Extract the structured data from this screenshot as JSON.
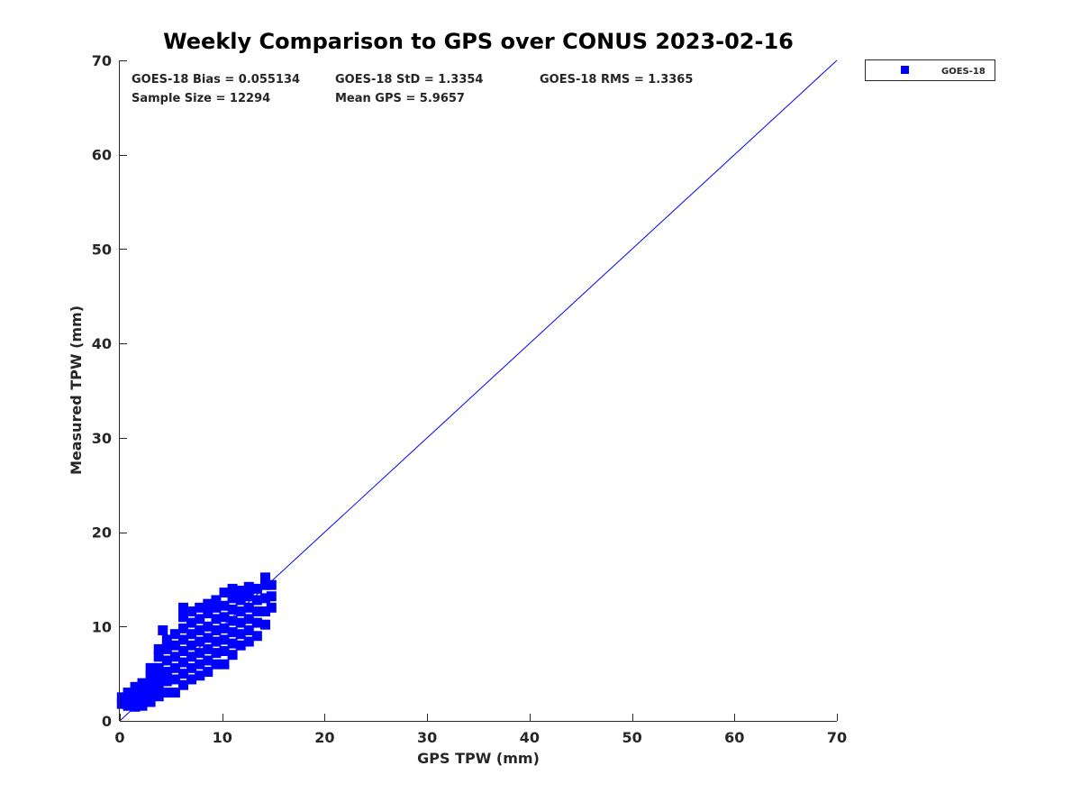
{
  "chart_data": {
    "type": "scatter",
    "title": "Weekly Comparison to GPS over CONUS 2023-02-16",
    "xlabel": "GPS TPW (mm)",
    "ylabel": "Measured TPW (mm)",
    "xlim": [
      0,
      70
    ],
    "ylim": [
      0,
      70
    ],
    "xticks": [
      0,
      10,
      20,
      30,
      40,
      50,
      60,
      70
    ],
    "yticks": [
      0,
      10,
      20,
      30,
      40,
      50,
      60,
      70
    ],
    "grid": false,
    "legend": {
      "position": "outside-top-right",
      "entries": [
        "GOES-18"
      ]
    },
    "stats": [
      "GOES-18 Bias = 0.055134",
      "GOES-18 StD = 1.3354",
      "GOES-18 RMS = 1.3365",
      "Sample Size = 12294",
      "Mean GPS = 5.9657"
    ],
    "reference_line": {
      "name": "1:1 line",
      "x": [
        0,
        70
      ],
      "y": [
        0,
        70
      ],
      "color": "#0000ff"
    },
    "series": [
      {
        "name": "GOES-18",
        "color": "#0000ff",
        "marker": "square",
        "points": [
          [
            0.2,
            1.8
          ],
          [
            0.2,
            2.5
          ],
          [
            0.8,
            1.6
          ],
          [
            0.8,
            2.4
          ],
          [
            0.8,
            3.0
          ],
          [
            1.5,
            1.5
          ],
          [
            1.5,
            2.2
          ],
          [
            1.5,
            3.0
          ],
          [
            1.5,
            3.6
          ],
          [
            2.2,
            1.6
          ],
          [
            2.2,
            2.4
          ],
          [
            2.2,
            3.2
          ],
          [
            2.2,
            4.0
          ],
          [
            3.0,
            2.0
          ],
          [
            3.0,
            3.0
          ],
          [
            3.0,
            3.8
          ],
          [
            3.0,
            4.8
          ],
          [
            3.0,
            5.6
          ],
          [
            3.8,
            2.6
          ],
          [
            3.8,
            3.6
          ],
          [
            3.8,
            4.6
          ],
          [
            3.8,
            5.6
          ],
          [
            3.8,
            6.8
          ],
          [
            3.8,
            7.6
          ],
          [
            4.2,
            9.6
          ],
          [
            4.6,
            3.0
          ],
          [
            4.6,
            4.2
          ],
          [
            4.6,
            5.2
          ],
          [
            4.6,
            6.4
          ],
          [
            4.6,
            7.6
          ],
          [
            4.6,
            8.6
          ],
          [
            5.4,
            3.0
          ],
          [
            5.4,
            4.4
          ],
          [
            5.4,
            5.6
          ],
          [
            5.4,
            6.8
          ],
          [
            5.4,
            8.0
          ],
          [
            5.4,
            9.2
          ],
          [
            6.2,
            3.8
          ],
          [
            6.2,
            5.0
          ],
          [
            6.2,
            6.2
          ],
          [
            6.2,
            7.4
          ],
          [
            6.2,
            8.6
          ],
          [
            6.2,
            9.8
          ],
          [
            6.2,
            11.0
          ],
          [
            6.2,
            12.0
          ],
          [
            7.0,
            4.4
          ],
          [
            7.0,
            5.6
          ],
          [
            7.0,
            6.8
          ],
          [
            7.0,
            8.0
          ],
          [
            7.0,
            9.2
          ],
          [
            7.0,
            10.4
          ],
          [
            7.0,
            11.6
          ],
          [
            7.8,
            4.8
          ],
          [
            7.8,
            6.0
          ],
          [
            7.8,
            7.2
          ],
          [
            7.8,
            8.4
          ],
          [
            7.8,
            9.6
          ],
          [
            7.8,
            10.8
          ],
          [
            7.8,
            12.0
          ],
          [
            8.6,
            5.2
          ],
          [
            8.6,
            6.4
          ],
          [
            8.6,
            7.6
          ],
          [
            8.6,
            8.8
          ],
          [
            8.6,
            10.0
          ],
          [
            8.6,
            11.4
          ],
          [
            8.6,
            12.4
          ],
          [
            9.4,
            6.0
          ],
          [
            9.4,
            7.2
          ],
          [
            9.4,
            8.4
          ],
          [
            9.4,
            9.6
          ],
          [
            9.4,
            10.8
          ],
          [
            9.4,
            12.0
          ],
          [
            9.4,
            12.8
          ],
          [
            10.2,
            6.0
          ],
          [
            10.2,
            7.4
          ],
          [
            10.2,
            8.6
          ],
          [
            10.2,
            9.8
          ],
          [
            10.2,
            11.0
          ],
          [
            10.2,
            12.2
          ],
          [
            10.2,
            13.6
          ],
          [
            11.0,
            7.0
          ],
          [
            11.0,
            8.2
          ],
          [
            11.0,
            9.4
          ],
          [
            11.0,
            10.6
          ],
          [
            11.0,
            11.8
          ],
          [
            11.0,
            13.0
          ],
          [
            11.0,
            14.0
          ],
          [
            11.8,
            8.0
          ],
          [
            11.8,
            9.2
          ],
          [
            11.8,
            10.4
          ],
          [
            11.8,
            11.6
          ],
          [
            11.8,
            12.8
          ],
          [
            11.8,
            13.8
          ],
          [
            12.6,
            8.4
          ],
          [
            12.6,
            9.6
          ],
          [
            12.6,
            10.8
          ],
          [
            12.6,
            12.0
          ],
          [
            12.6,
            13.2
          ],
          [
            12.6,
            14.2
          ],
          [
            13.4,
            9.0
          ],
          [
            13.4,
            10.4
          ],
          [
            13.4,
            11.6
          ],
          [
            13.4,
            12.8
          ],
          [
            13.4,
            14.0
          ],
          [
            14.2,
            10.2
          ],
          [
            14.2,
            11.6
          ],
          [
            14.2,
            13.0
          ],
          [
            14.2,
            14.4
          ],
          [
            14.2,
            15.2
          ],
          [
            14.8,
            12.0
          ],
          [
            14.8,
            13.2
          ],
          [
            14.8,
            14.4
          ]
        ]
      }
    ]
  }
}
